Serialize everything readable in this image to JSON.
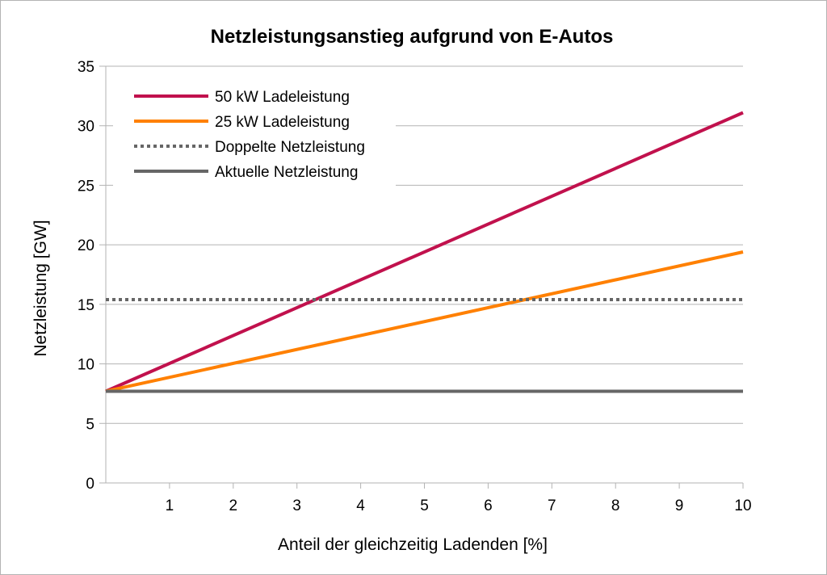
{
  "chart_data": {
    "type": "line",
    "title": "Netzleistungsanstieg aufgrund von E-Autos",
    "xlabel": "Anteil der gleichzeitig Ladenden [%]",
    "ylabel": "Netzleistung [GW]",
    "xlim": [
      0,
      10
    ],
    "ylim": [
      0,
      35
    ],
    "xticks": [
      "1",
      "2",
      "3",
      "4",
      "5",
      "6",
      "7",
      "8",
      "9",
      "10"
    ],
    "yticks": [
      "0",
      "5",
      "10",
      "15",
      "20",
      "25",
      "30",
      "35"
    ],
    "grid": "horizontal",
    "legend_position": "top-left",
    "series": [
      {
        "name": "50 kW Ladeleistung",
        "color": "#c1114d",
        "style": "solid",
        "x": [
          0,
          10
        ],
        "y": [
          7.7,
          31.1
        ]
      },
      {
        "name": "25 kW Ladeleistung",
        "color": "#ff8000",
        "style": "solid",
        "x": [
          0,
          10
        ],
        "y": [
          7.7,
          19.4
        ]
      },
      {
        "name": "Doppelte Netzleistung",
        "color": "#666666",
        "style": "dotted",
        "x": [
          0,
          10
        ],
        "y": [
          15.4,
          15.4
        ]
      },
      {
        "name": "Aktuelle Netzleistung",
        "color": "#666666",
        "style": "solid",
        "x": [
          0,
          10
        ],
        "y": [
          7.7,
          7.7
        ]
      }
    ]
  }
}
